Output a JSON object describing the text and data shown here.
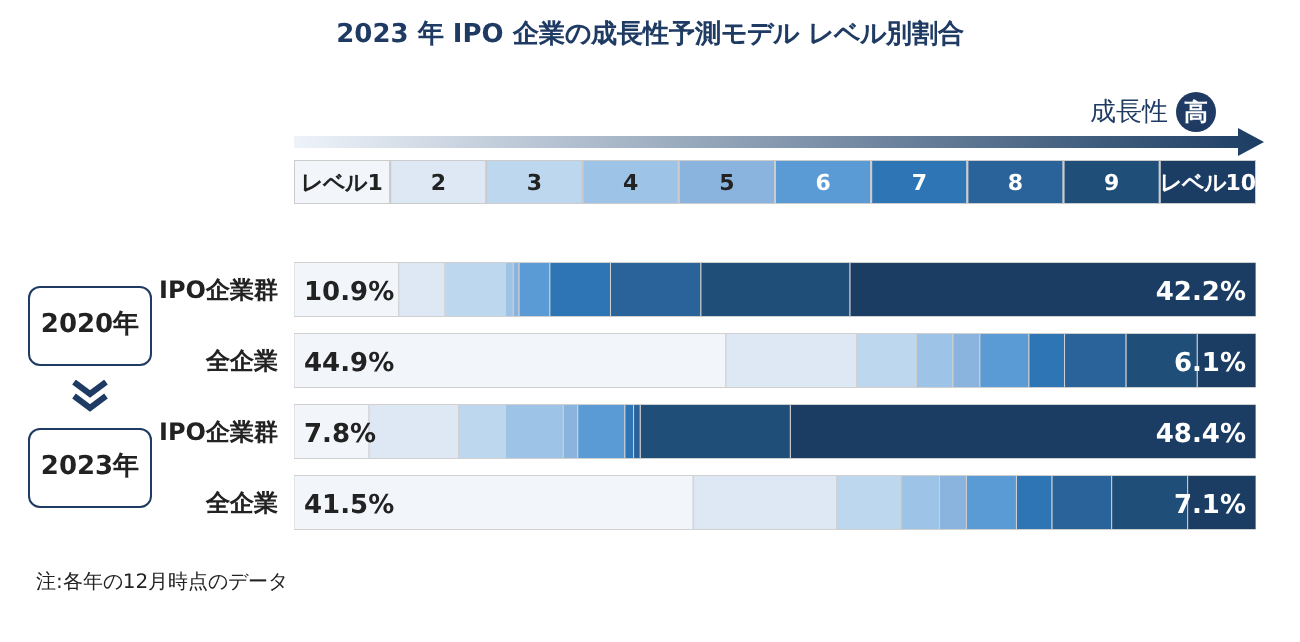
{
  "chart_data": {
    "type": "bar",
    "orientation": "horizontal",
    "stacked": true,
    "title": "2023 年 IPO 企業の成長性予測モデル レベル別割合",
    "categories": [
      "IPO企業群",
      "全企業",
      "IPO企業群",
      "全企業"
    ],
    "xlim": [
      0,
      100
    ],
    "tick_labels": "y",
    "legend": "top",
    "grid": false,
    "annotations": [
      "成長性",
      "高",
      "2020年",
      "2023年",
      "注:各年の12月時点のデータ"
    ],
    "series": [
      {
        "name": "レベル1",
        "color": "#f2f6fb",
        "values": [
          10.9,
          44.9,
          7.8,
          41.5
        ],
        "value_labels": [
          "10.9%",
          "44.9%",
          "7.8%",
          "41.5%"
        ]
      },
      {
        "name": "2",
        "color": "#dde8f4",
        "values": [
          4.8,
          13.6,
          9.3,
          14.9
        ]
      },
      {
        "name": "3",
        "color": "#bdd7ee",
        "values": [
          6.3,
          6.2,
          4.9,
          6.7
        ]
      },
      {
        "name": "4",
        "color": "#9dc3e6",
        "values": [
          0.8,
          3.8,
          6.0,
          4.0
        ]
      },
      {
        "name": "5",
        "color": "#8ab4de",
        "values": [
          0.6,
          2.8,
          1.5,
          2.8
        ]
      },
      {
        "name": "6",
        "color": "#5b9bd5",
        "values": [
          3.2,
          5.1,
          4.9,
          5.2
        ]
      },
      {
        "name": "7",
        "color": "#2e75b6",
        "values": [
          6.3,
          3.7,
          0.9,
          3.7
        ]
      },
      {
        "name": "8",
        "color": "#2a6399",
        "values": [
          9.4,
          6.4,
          0.7,
          6.2
        ]
      },
      {
        "name": "9",
        "color": "#1f4e79",
        "values": [
          15.5,
          7.4,
          15.6,
          7.9
        ]
      },
      {
        "name": "レベル10",
        "color": "#1c3d63",
        "values": [
          42.2,
          6.1,
          48.4,
          7.1
        ],
        "value_labels": [
          "42.2%",
          "6.1%",
          "48.4%",
          "7.1%"
        ]
      }
    ]
  }
}
